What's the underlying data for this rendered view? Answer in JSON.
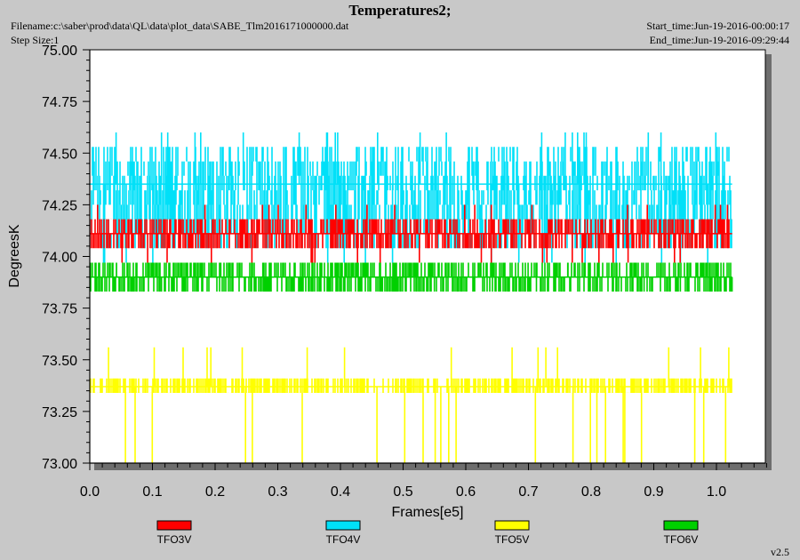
{
  "header": {
    "title": "Temperatures2;",
    "filename": "Filename:c:\\saber\\prod\\data\\QL\\data\\plot_data\\SABE_Tlm2016171000000.dat",
    "step_size": "Step Size:1",
    "start_time": "Start_time:Jun-19-2016-00:00:17",
    "end_time": "End_time:Jun-19-2016-09:29:44"
  },
  "footer": {
    "version": "v2.5"
  },
  "chart_data": {
    "type": "line",
    "title": "Temperatures2;",
    "xlabel": "Frames[e5]",
    "ylabel": "DegreesK",
    "xlim": [
      0.0,
      1.08
    ],
    "ylim": [
      73.0,
      75.0
    ],
    "xticks": [
      0.0,
      0.1,
      0.2,
      0.3,
      0.4,
      0.5,
      0.6,
      0.7,
      0.8,
      0.9,
      1.0
    ],
    "xtick_labels": [
      "0.0",
      "0.1",
      "0.2",
      "0.3",
      "0.4",
      "0.5",
      "0.6",
      "0.7",
      "0.8",
      "0.9",
      "1.0"
    ],
    "yticks": [
      73.0,
      73.25,
      73.5,
      73.75,
      74.0,
      74.25,
      74.5,
      74.75,
      75.0
    ],
    "ytick_labels": [
      "73.00",
      "73.25",
      "73.50",
      "73.75",
      "74.00",
      "74.25",
      "74.50",
      "74.75",
      "75.00"
    ],
    "x_range": [
      0.0,
      1.025
    ],
    "legend_position": "bottom",
    "grid": false,
    "series": [
      {
        "name": "TFO3V",
        "color": "#ff0000",
        "levels": [
          74.04,
          74.11,
          74.18
        ],
        "typical": 74.11,
        "min": 73.97,
        "max": 74.25
      },
      {
        "name": "TFO4V",
        "color": "#00e0f8",
        "levels": [
          74.04,
          74.11,
          74.18,
          74.25,
          74.32,
          74.39,
          74.46,
          74.53
        ],
        "typical": 74.35,
        "min": 73.97,
        "max": 74.6
      },
      {
        "name": "TFO5V",
        "color": "#ffff00",
        "levels": [
          73.34,
          73.41
        ],
        "typical": 73.37,
        "min": 73.0,
        "max": 73.56
      },
      {
        "name": "TFO6V",
        "color": "#00d000",
        "levels": [
          73.83,
          73.9,
          73.97
        ],
        "typical": 73.9,
        "min": 73.83,
        "max": 73.97
      }
    ]
  }
}
